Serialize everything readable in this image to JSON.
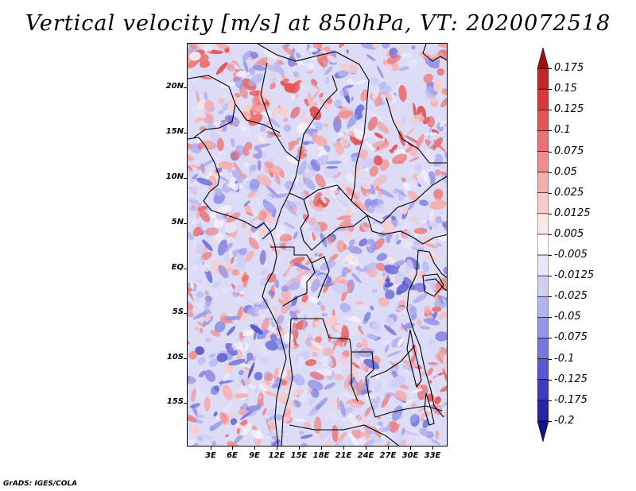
{
  "title": "Vertical velocity [m/s] at 850hPa, VT: 2020072518",
  "credit": "GrADS: IGES/COLA",
  "map": {
    "lat_labels": [
      "20N",
      "15N",
      "10N",
      "5N",
      "EQ",
      "5S",
      "10S",
      "15S"
    ],
    "lon_labels": [
      "3E",
      "6E",
      "9E",
      "12E",
      "15E",
      "18E",
      "21E",
      "24E",
      "27E",
      "30E",
      "33E"
    ]
  },
  "colorbar": {
    "labels": [
      "0.175",
      "0.15",
      "0.125",
      "0.1",
      "0.075",
      "0.05",
      "0.025",
      "0.0125",
      "0.005",
      "-0.005",
      "-0.0125",
      "-0.025",
      "-0.05",
      "-0.075",
      "-0.1",
      "-0.125",
      "-0.175",
      "-0.2"
    ],
    "colors": [
      "#a31212",
      "#c42626",
      "#d63b3b",
      "#e25656",
      "#ea7272",
      "#f08e8e",
      "#f5aeae",
      "#f9cccc",
      "#fce6e6",
      "#ffffff",
      "#e8e8fb",
      "#cfcff6",
      "#b3b3f0",
      "#9696e8",
      "#7777dd",
      "#5858cf",
      "#3c3cbd",
      "#2626a5",
      "#14148a"
    ]
  }
}
